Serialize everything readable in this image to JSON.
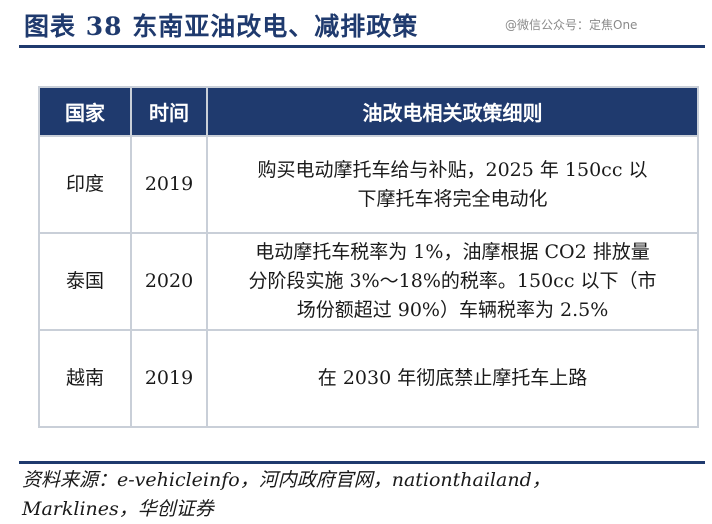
{
  "figure": {
    "title": "图表 38 东南亚油改电、减排政策",
    "watermark": "@微信公众号：定焦One"
  },
  "table": {
    "headers": [
      "国家",
      "时间",
      "油改电相关政策细则"
    ],
    "rows": [
      {
        "country": "印度",
        "year": "2019",
        "lines": [
          "购买电动摩托车给与补贴，2025 年 150cc 以",
          "下摩托车将完全电动化"
        ]
      },
      {
        "country": "泰国",
        "year": "2020",
        "lines": [
          "电动摩托车税率为 1%，油摩根据 CO2 排放量",
          "分阶段实施 3%～18%的税率。150cc 以下（市",
          "场份额超过 90%）车辆税率为 2.5%"
        ]
      },
      {
        "country": "越南",
        "year": "2019",
        "lines": [
          "在 2030 年彻底禁止摩托车上路"
        ]
      }
    ]
  },
  "source": {
    "line1": "资料来源：e-vehicleinfo，河内政府官网，nationthailand，",
    "line2": "Marklines，华创证券"
  }
}
